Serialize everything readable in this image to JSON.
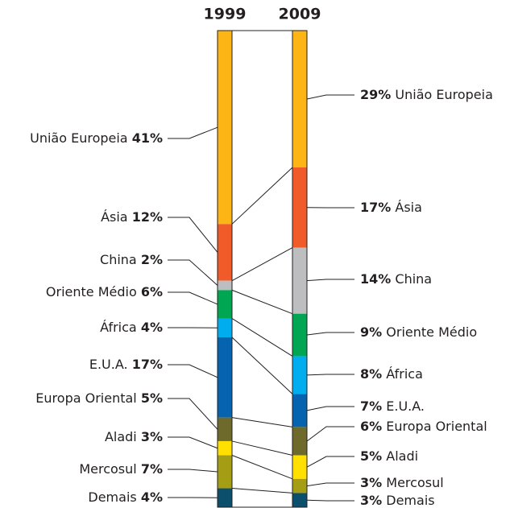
{
  "chart_data": {
    "type": "stacked-column-comparison",
    "categories": [
      "União Europeia",
      "Ásia",
      "China",
      "Oriente Médio",
      "África",
      "E.U.A.",
      "Europa Oriental",
      "Aladi",
      "Mercosul",
      "Demais"
    ],
    "colors": [
      "#fdb515",
      "#f15a29",
      "#bcbec0",
      "#00a651",
      "#00aeef",
      "#0563b0",
      "#6d6a2c",
      "#ffe000",
      "#a59d13",
      "#0b4f6c"
    ],
    "series": [
      {
        "name": "1999",
        "values": [
          41,
          12,
          2,
          6,
          4,
          17,
          5,
          3,
          7,
          4
        ],
        "value_labels": [
          "41%",
          "12%",
          "2%",
          "6%",
          "4%",
          "17%",
          "5%",
          "3%",
          "7%",
          "4%"
        ]
      },
      {
        "name": "2009",
        "values": [
          29,
          17,
          14,
          9,
          8,
          7,
          6,
          5,
          3,
          3
        ],
        "value_labels": [
          "29%",
          "17%",
          "14%",
          "9%",
          "8%",
          "7%",
          "6%",
          "5%",
          "3%",
          "3%"
        ]
      }
    ]
  }
}
